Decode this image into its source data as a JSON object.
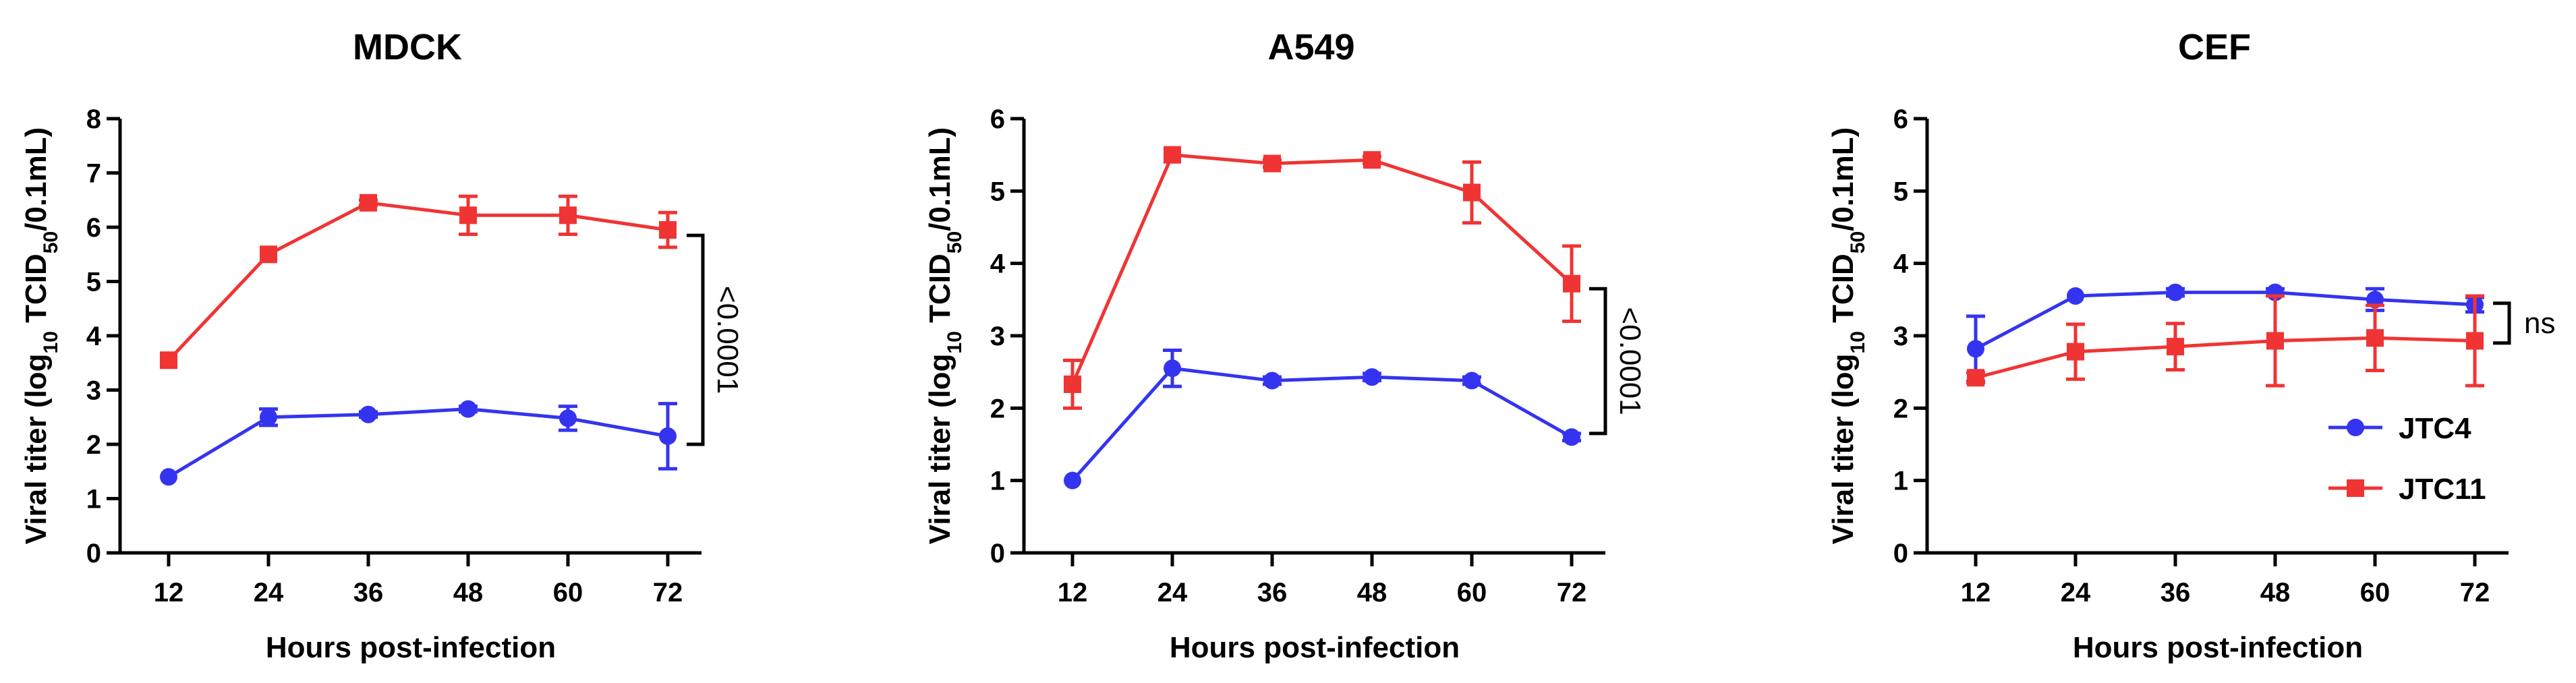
{
  "colors": {
    "JTC4": "#3434f0",
    "JTC11": "#f03434"
  },
  "chart_data": [
    {
      "type": "line",
      "title": "MDCK",
      "xlabel": "Hours post-infection",
      "ylabel_parts": [
        "Viral titer (log",
        "10",
        " TCID",
        "50",
        "/0.1mL)"
      ],
      "x": [
        12,
        24,
        36,
        48,
        60,
        72
      ],
      "xticks": [
        "12",
        "24",
        "36",
        "48",
        "60",
        "72"
      ],
      "ylim": [
        0,
        8
      ],
      "yticks": [
        "0",
        "1",
        "2",
        "3",
        "4",
        "5",
        "6",
        "7",
        "8"
      ],
      "series": [
        {
          "name": "JTC4",
          "marker": "circle",
          "values": [
            1.4,
            2.5,
            2.55,
            2.65,
            2.48,
            2.15
          ],
          "errors": [
            0,
            0.15,
            0.05,
            0.05,
            0.22,
            0.6
          ]
        },
        {
          "name": "JTC11",
          "marker": "square",
          "values": [
            3.55,
            5.5,
            6.45,
            6.22,
            6.22,
            5.95
          ],
          "errors": [
            0,
            0,
            0.05,
            0.35,
            0.35,
            0.32
          ]
        }
      ],
      "annotation": "<0.0001",
      "bracket_range": [
        2.0,
        5.85
      ],
      "annotation_rotated": true
    },
    {
      "type": "line",
      "title": "A549",
      "xlabel": "Hours post-infection",
      "ylabel_parts": [
        "Viral titer (log",
        "10",
        " TCID",
        "50",
        "/0.1mL)"
      ],
      "x": [
        12,
        24,
        36,
        48,
        60,
        72
      ],
      "xticks": [
        "12",
        "24",
        "36",
        "48",
        "60",
        "72"
      ],
      "ylim": [
        0,
        6
      ],
      "yticks": [
        "0",
        "1",
        "2",
        "3",
        "4",
        "5",
        "6"
      ],
      "series": [
        {
          "name": "JTC4",
          "marker": "circle",
          "values": [
            1.0,
            2.55,
            2.38,
            2.43,
            2.38,
            1.6
          ],
          "errors": [
            0,
            0.25,
            0.05,
            0.05,
            0.05,
            0.05
          ]
        },
        {
          "name": "JTC11",
          "marker": "square",
          "values": [
            2.33,
            5.5,
            5.38,
            5.43,
            4.98,
            3.72
          ],
          "errors": [
            0.33,
            0,
            0.05,
            0.05,
            0.42,
            0.52
          ]
        }
      ],
      "annotation": "<0.0001",
      "bracket_range": [
        1.65,
        3.65
      ],
      "annotation_rotated": true
    },
    {
      "type": "line",
      "title": "CEF",
      "xlabel": "Hours post-infection",
      "ylabel_parts": [
        "Viral titer (log",
        "10",
        " TCID",
        "50",
        "/0.1mL)"
      ],
      "x": [
        12,
        24,
        36,
        48,
        60,
        72
      ],
      "xticks": [
        "12",
        "24",
        "36",
        "48",
        "60",
        "72"
      ],
      "ylim": [
        0,
        6
      ],
      "yticks": [
        "0",
        "1",
        "2",
        "3",
        "4",
        "5",
        "6"
      ],
      "series": [
        {
          "name": "JTC4",
          "marker": "circle",
          "values": [
            2.82,
            3.55,
            3.6,
            3.6,
            3.5,
            3.43
          ],
          "errors": [
            0.45,
            0,
            0.05,
            0.05,
            0.15,
            0.1
          ]
        },
        {
          "name": "JTC11",
          "marker": "square",
          "values": [
            2.42,
            2.78,
            2.85,
            2.93,
            2.97,
            2.93
          ],
          "errors": [
            0.07,
            0.38,
            0.32,
            0.62,
            0.45,
            0.62
          ]
        }
      ],
      "annotation": "ns",
      "bracket_range": [
        2.9,
        3.45
      ],
      "annotation_rotated": false,
      "legend": {
        "placement": "right",
        "entries": [
          "JTC4",
          "JTC11"
        ]
      }
    }
  ]
}
